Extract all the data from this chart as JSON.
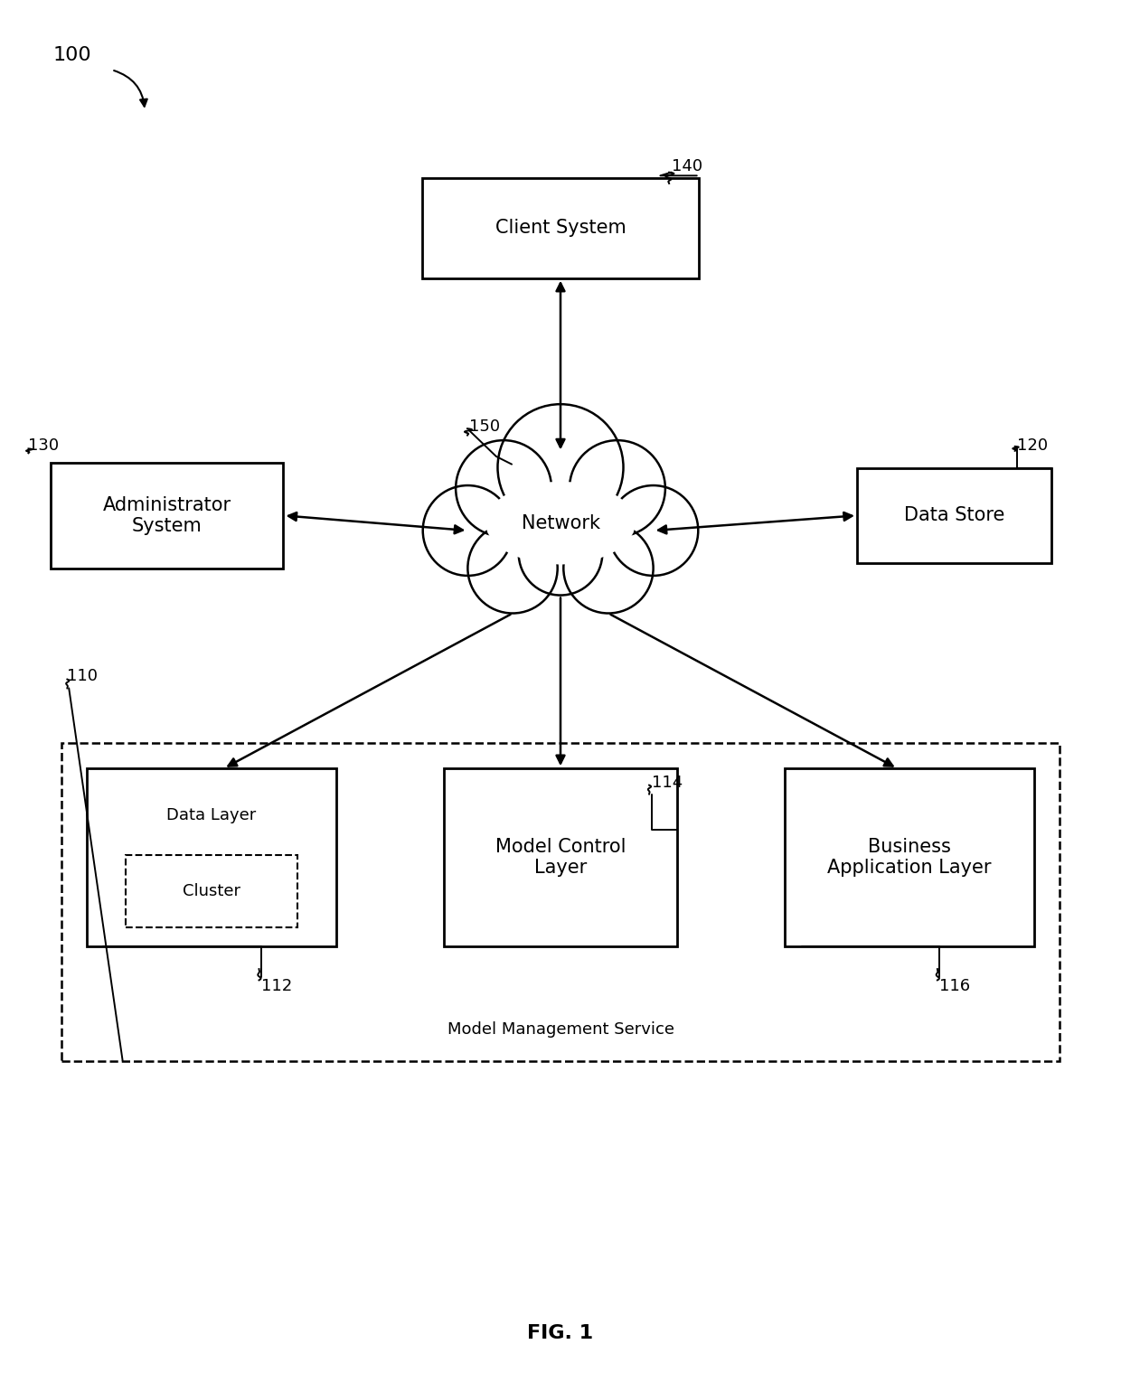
{
  "fig_width": 12.4,
  "fig_height": 15.29,
  "bg_color": "#ffffff",
  "fig_label": "FIG. 1",
  "ref_100": "100",
  "ref_110": "110",
  "ref_112": "112",
  "ref_114": "114",
  "ref_116": "116",
  "ref_120": "120",
  "ref_130": "130",
  "ref_140": "140",
  "ref_150": "150",
  "client_system_label": "Client System",
  "network_label": "Network",
  "data_store_label": "Data Store",
  "admin_system_label": "Administrator\nSystem",
  "data_layer_label": "Data Layer",
  "cluster_label": "Cluster",
  "model_control_label": "Model Control\nLayer",
  "business_app_label": "Business\nApplication Layer",
  "mms_label": "Model Management Service",
  "font_size_main": 15,
  "font_size_small": 13,
  "font_size_fig": 16
}
